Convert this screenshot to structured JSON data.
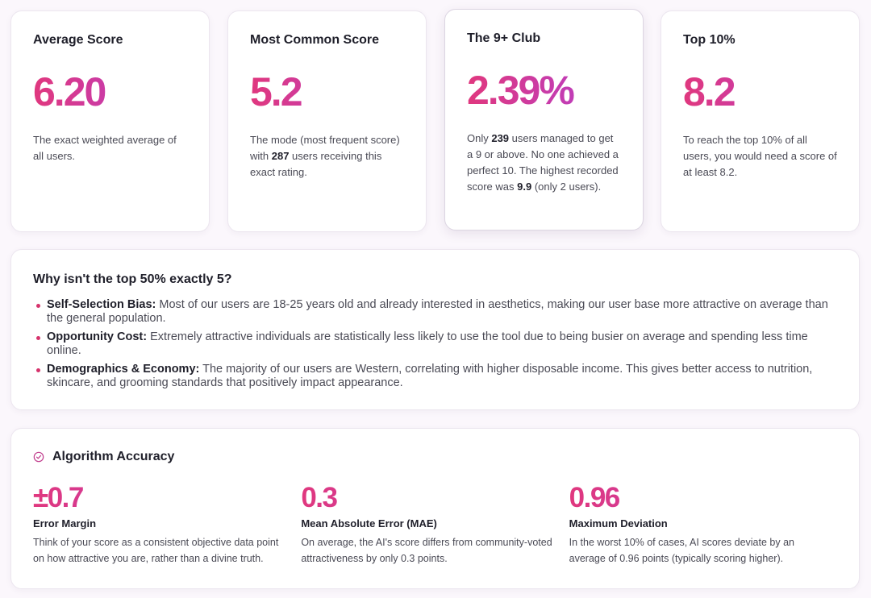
{
  "stats": [
    {
      "title": "Average Score",
      "value": "6.20",
      "desc": [
        {
          "text": "The exact weighted average of all users.",
          "bold": false
        }
      ]
    },
    {
      "title": "Most Common Score",
      "value": "5.2",
      "desc": [
        {
          "text": "The mode (most frequent score) with ",
          "bold": false
        },
        {
          "text": "287",
          "bold": true
        },
        {
          "text": " users receiving this exact rating.",
          "bold": false
        }
      ]
    },
    {
      "title": "The 9+ Club",
      "value": "2.39%",
      "desc": [
        {
          "text": "Only ",
          "bold": false
        },
        {
          "text": "239",
          "bold": true
        },
        {
          "text": " users managed to get a 9 or above. No one achieved a perfect 10. The highest recorded score was ",
          "bold": false
        },
        {
          "text": "9.9",
          "bold": true
        },
        {
          "text": " (only 2 users).",
          "bold": false
        }
      ]
    },
    {
      "title": "Top 10%",
      "value": "8.2",
      "desc": [
        {
          "text": "To reach the top 10% of all users, you would need a score of at least 8.2.",
          "bold": false
        }
      ]
    }
  ],
  "why": {
    "title": "Why isn't the top 50% exactly 5?",
    "items": [
      {
        "label": "Self-Selection Bias:",
        "text": " Most of our users are 18-25 years old and already interested in aesthetics, making our user base more attractive on average than the general population."
      },
      {
        "label": "Opportunity Cost:",
        "text": " Extremely attractive individuals are statistically less likely to use the tool due to being busier on average and spending less time online."
      },
      {
        "label": "Demographics & Economy:",
        "text": " The majority of our users are Western, correlating with higher disposable income. This gives better access to nutrition, skincare, and grooming standards that positively impact appearance."
      }
    ]
  },
  "accuracy": {
    "title": "Algorithm Accuracy",
    "icon": "check-circle-icon",
    "metrics": [
      {
        "value": "±0.7",
        "label": "Error Margin",
        "desc": "Think of your score as a consistent objective data point on how attractive you are, rather than a divine truth."
      },
      {
        "value": "0.3",
        "label": "Mean Absolute Error (MAE)",
        "desc": "On average, the AI's score differs from community-voted attractiveness by only 0.3 points."
      },
      {
        "value": "0.96",
        "label": "Maximum Deviation",
        "desc": "In the worst 10% of cases, AI scores deviate by an average of 0.96 points (typically scoring higher)."
      }
    ]
  },
  "colors": {
    "accent_pink": "#e0387e",
    "accent_purple": "#b43fcf",
    "bullet": "#d6336c",
    "background": "#fbf7fc"
  }
}
